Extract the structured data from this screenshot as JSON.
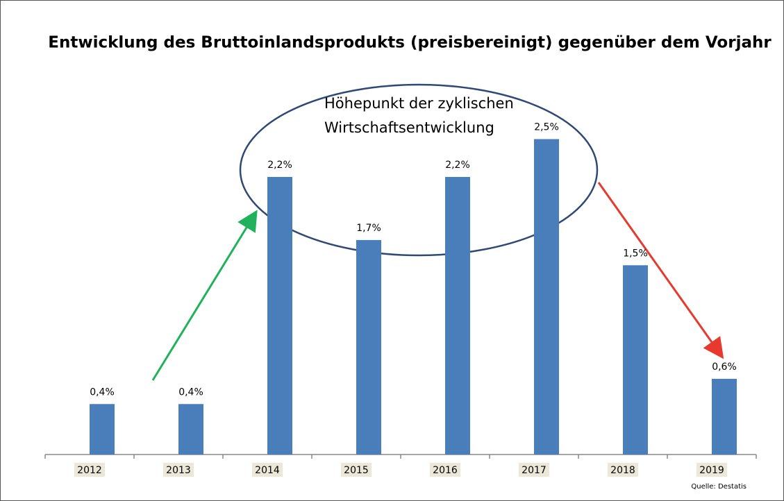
{
  "chart_data": {
    "type": "bar",
    "title": "Entwicklung des Bruttoinlandsprodukts (preisbereinigt) gegenüber dem Vorjahr",
    "categories": [
      "2012",
      "2013",
      "2014",
      "2015",
      "2016",
      "2017",
      "2018",
      "2019"
    ],
    "values": [
      0.4,
      0.4,
      2.2,
      1.7,
      2.2,
      2.5,
      1.5,
      0.6
    ],
    "value_labels": [
      "0,4%",
      "0,4%",
      "2,2%",
      "1,7%",
      "2,2%",
      "2,5%",
      "1,5%",
      "0,6%"
    ],
    "color": "#4a7ebb",
    "ylim": [
      0,
      2.75
    ],
    "annotation": [
      "Höhepunkt der zyklischen",
      "Wirtschaftsentwicklung"
    ],
    "source": "Quelle: Destatis"
  }
}
